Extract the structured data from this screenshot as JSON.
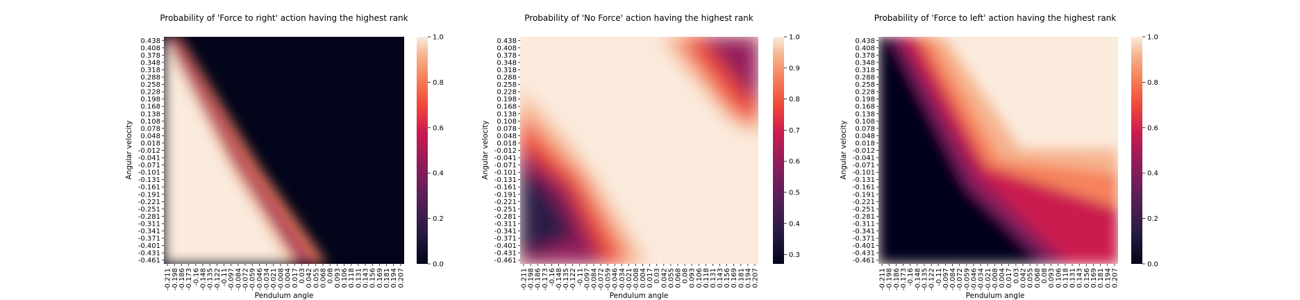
{
  "chart_data": [
    {
      "type": "heatmap",
      "title": "Probability of 'Force to right' action having the highest rank",
      "xlabel": "Pendulum angle",
      "ylabel": "Angular velocity",
      "x_ticks": [
        "-0.211",
        "-0.198",
        "-0.186",
        "-0.173",
        "-0.16",
        "-0.148",
        "-0.135",
        "-0.122",
        "-0.11",
        "-0.097",
        "-0.084",
        "-0.072",
        "-0.059",
        "-0.046",
        "-0.034",
        "-0.021",
        "-0.008",
        "0.004",
        "0.017",
        "0.03",
        "0.042",
        "0.055",
        "0.068",
        "0.08",
        "0.093",
        "0.106",
        "0.118",
        "0.131",
        "0.143",
        "0.156",
        "0.169",
        "0.181",
        "0.194",
        "0.207"
      ],
      "y_ticks": [
        "0.438",
        "0.408",
        "0.378",
        "0.348",
        "0.318",
        "0.288",
        "0.258",
        "0.228",
        "0.198",
        "0.168",
        "0.138",
        "0.108",
        "0.078",
        "0.048",
        "0.018",
        "-0.012",
        "-0.041",
        "-0.071",
        "-0.101",
        "-0.131",
        "-0.161",
        "-0.191",
        "-0.221",
        "-0.251",
        "-0.281",
        "-0.311",
        "-0.341",
        "-0.371",
        "-0.401",
        "-0.431",
        "-0.461"
      ],
      "colorbar": {
        "min": 0.0,
        "max": 1.0,
        "ticks": [
          "0.0",
          "0.2",
          "0.4",
          "0.6",
          "0.8",
          "1.0"
        ]
      },
      "description_values": "1.0 in lower-left region, 0.0 in upper-right, diagonal transition band from top-left to bottom-center"
    },
    {
      "type": "heatmap",
      "title": "Probability of 'No Force' action having the highest rank",
      "xlabel": "Pendulum angle",
      "ylabel": "Angular velocity",
      "x_ticks": [
        "-0.211",
        "-0.198",
        "-0.186",
        "-0.173",
        "-0.16",
        "-0.148",
        "-0.135",
        "-0.122",
        "-0.11",
        "-0.097",
        "-0.084",
        "-0.072",
        "-0.059",
        "-0.046",
        "-0.034",
        "-0.021",
        "-0.008",
        "0.004",
        "0.017",
        "0.03",
        "0.042",
        "0.055",
        "0.068",
        "0.08",
        "0.093",
        "0.106",
        "0.118",
        "0.131",
        "0.143",
        "0.156",
        "0.169",
        "0.181",
        "0.194",
        "0.207"
      ],
      "y_ticks": [
        "0.438",
        "0.408",
        "0.378",
        "0.348",
        "0.318",
        "0.288",
        "0.258",
        "0.228",
        "0.198",
        "0.168",
        "0.138",
        "0.108",
        "0.078",
        "0.048",
        "0.018",
        "-0.012",
        "-0.041",
        "-0.071",
        "-0.101",
        "-0.131",
        "-0.161",
        "-0.191",
        "-0.221",
        "-0.251",
        "-0.281",
        "-0.311",
        "-0.341",
        "-0.371",
        "-0.401",
        "-0.431",
        "-0.461"
      ],
      "colorbar": {
        "min": 0.27,
        "max": 1.0,
        "ticks": [
          "0.3",
          "0.4",
          "0.5",
          "0.6",
          "0.7",
          "0.8",
          "0.9",
          "1.0"
        ]
      },
      "description_values": "~1.0 across most of the field; drops toward ~0.3 in lower-left corner and upper-right corner"
    },
    {
      "type": "heatmap",
      "title": "Probability of 'Force to left' action having the highest rank",
      "xlabel": "Pendulum angle",
      "ylabel": "Angular velocity",
      "x_ticks": [
        "-0.211",
        "-0.198",
        "-0.186",
        "-0.173",
        "-0.16",
        "-0.148",
        "-0.135",
        "-0.122",
        "-0.11",
        "-0.097",
        "-0.084",
        "-0.072",
        "-0.059",
        "-0.046",
        "-0.034",
        "-0.021",
        "-0.008",
        "0.004",
        "0.017",
        "0.03",
        "0.042",
        "0.055",
        "0.068",
        "0.08",
        "0.093",
        "0.106",
        "0.118",
        "0.131",
        "0.143",
        "0.156",
        "0.169",
        "0.181",
        "0.194",
        "0.207"
      ],
      "y_ticks": [
        "0.438",
        "0.408",
        "0.378",
        "0.348",
        "0.318",
        "0.288",
        "0.258",
        "0.228",
        "0.198",
        "0.168",
        "0.138",
        "0.108",
        "0.078",
        "0.048",
        "0.018",
        "-0.012",
        "-0.041",
        "-0.071",
        "-0.101",
        "-0.131",
        "-0.161",
        "-0.191",
        "-0.221",
        "-0.251",
        "-0.281",
        "-0.311",
        "-0.341",
        "-0.371",
        "-0.401",
        "-0.431",
        "-0.461"
      ],
      "colorbar": {
        "min": 0.0,
        "max": 1.0,
        "ticks": [
          "0.0",
          "0.2",
          "0.4",
          "0.6",
          "0.8",
          "1.0"
        ]
      },
      "description_values": "0.0 in lower-left, rising to 1.0 in upper-right; lower-right region ~0.3-0.6"
    }
  ]
}
